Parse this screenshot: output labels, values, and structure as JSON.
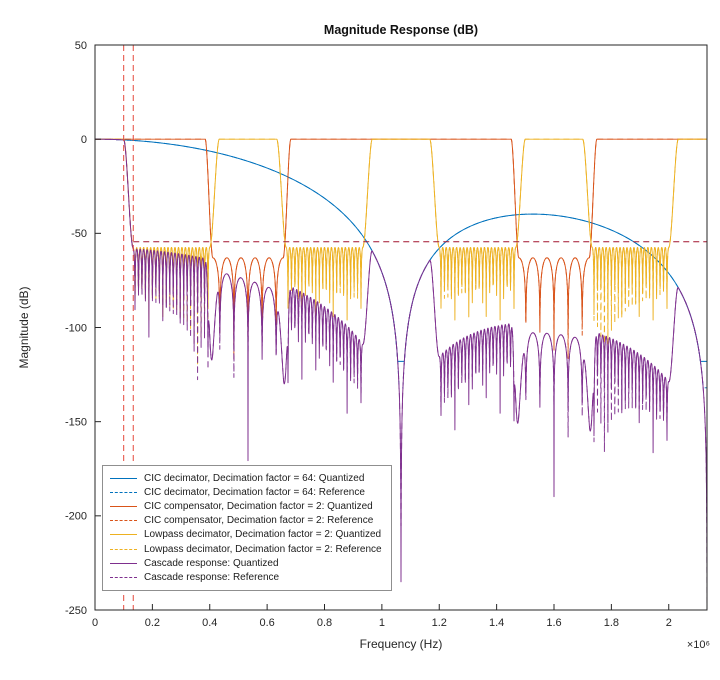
{
  "chart_data": {
    "type": "line",
    "title": "Magnitude Response (dB)",
    "xlabel": "Frequency (Hz)",
    "ylabel": "Magnitude (dB)",
    "multiplier": "×10⁶",
    "xlim": [
      0,
      2133333
    ],
    "ylim": [
      -250,
      50
    ],
    "grid": false,
    "legend_location": "southwest-inside",
    "x_ticks": {
      "values": [
        0,
        200000,
        400000,
        600000,
        800000,
        1000000,
        1200000,
        1400000,
        1600000,
        1800000,
        2000000
      ],
      "labels": [
        "0",
        "0.2",
        "0.4",
        "0.6",
        "0.8",
        "1",
        "1.2",
        "1.4",
        "1.6",
        "1.8",
        "2"
      ]
    },
    "y_ticks": {
      "values": [
        50,
        0,
        -50,
        -100,
        -150,
        -200,
        -250
      ],
      "labels": [
        "50",
        "0",
        "-50",
        "-100",
        "-150",
        "-200",
        "-250"
      ]
    },
    "series": [
      {
        "label": "CIC decimator, Decimation factor = 64: Quantized",
        "color": "#0072BD",
        "style": "solid",
        "model": "cic",
        "variant": "quantized"
      },
      {
        "label": "CIC decimator, Decimation factor = 64: Reference",
        "color": "#0072BD",
        "style": "dashed",
        "model": "cic",
        "variant": "reference"
      },
      {
        "label": "CIC compensator, Decimation factor = 2: Quantized",
        "color": "#D95319",
        "style": "solid",
        "model": "comp",
        "variant": "quantized"
      },
      {
        "label": "CIC compensator, Decimation factor = 2: Reference",
        "color": "#D95319",
        "style": "dashed",
        "model": "comp",
        "variant": "reference"
      },
      {
        "label": "Lowpass decimator, Decimation factor = 2: Quantized",
        "color": "#EDB120",
        "style": "solid",
        "model": "lowpass",
        "variant": "quantized"
      },
      {
        "label": "Lowpass decimator, Decimation factor = 2: Reference",
        "color": "#EDB120",
        "style": "dashed",
        "model": "lowpass",
        "variant": "reference"
      },
      {
        "label": "Cascade response: Quantized",
        "color": "#7E2F8E",
        "style": "solid",
        "model": "cascade",
        "variant": "quantized"
      },
      {
        "label": "Cascade response: Reference",
        "color": "#7E2F8E",
        "style": "dashed",
        "model": "cascade",
        "variant": "reference"
      }
    ],
    "models": {
      "cic": {
        "null_spacing_hz": 1066667,
        "sections": 3,
        "clamp_db": {
          "quantized": -118,
          "reference": -132
        }
      },
      "comp": {
        "period_hz": 1066667,
        "pass_edge_frac": 0.36,
        "stop_edge_frac": 0.385,
        "stop_env_db": -63,
        "ripple_cycles": 2.5,
        "ripple_phase": 0.5,
        "clamp_db": {
          "quantized": -112,
          "reference": -140
        }
      },
      "lowpass": {
        "period_hz": 533333,
        "pass_edge_frac": 0.1875,
        "stop_edge_frac": 0.25,
        "stop_env_db": -57.5,
        "ripple_cycles": 11,
        "ripple_phase": 0.5,
        "clamp_db": {
          "quantized": -96,
          "reference": -120
        }
      },
      "cascade": {
        "clamp_db": {
          "quantized": -235,
          "reference": -262
        }
      }
    },
    "mask_lines": {
      "vertical_hz": [
        100000,
        133333
      ],
      "vertical_color": "#e6493a",
      "horizontal_db": -54.5,
      "horizontal_from_hz": 133333,
      "horizontal_color": "#a2142f"
    }
  }
}
